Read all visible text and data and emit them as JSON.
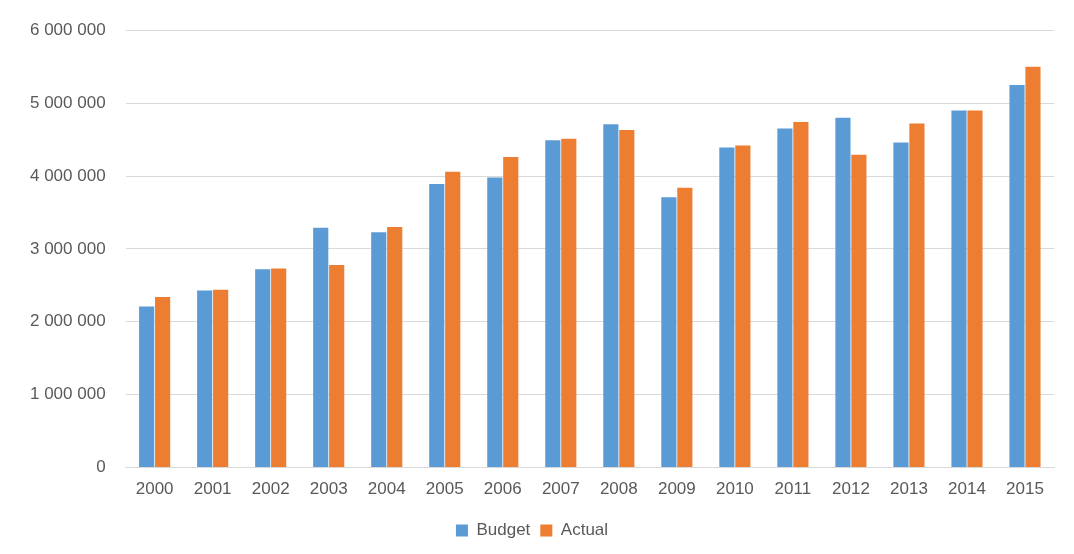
{
  "chart_data": {
    "type": "bar",
    "categories": [
      "2000",
      "2001",
      "2002",
      "2003",
      "2004",
      "2005",
      "2006",
      "2007",
      "2008",
      "2009",
      "2010",
      "2011",
      "2012",
      "2013",
      "2014",
      "2015"
    ],
    "series": [
      {
        "name": "Budget",
        "color": "#5b9bd5",
        "values": [
          2210000,
          2430000,
          2720000,
          3290000,
          3230000,
          3890000,
          3980000,
          4490000,
          4710000,
          3710000,
          4390000,
          4650000,
          4800000,
          4460000,
          4900000,
          5250000
        ]
      },
      {
        "name": "Actual",
        "color": "#ed7d31",
        "values": [
          2340000,
          2440000,
          2730000,
          2780000,
          3300000,
          4060000,
          4260000,
          4510000,
          4630000,
          3840000,
          4420000,
          4740000,
          4290000,
          4720000,
          4900000,
          5500000
        ]
      }
    ],
    "ylim": [
      0,
      6000000
    ],
    "yticks": [
      {
        "value": 0,
        "label": "0"
      },
      {
        "value": 1000000,
        "label": "1 000 000"
      },
      {
        "value": 2000000,
        "label": "2 000 000"
      },
      {
        "value": 3000000,
        "label": "3 000 000"
      },
      {
        "value": 4000000,
        "label": "4 000 000"
      },
      {
        "value": 5000000,
        "label": "5 000 000"
      },
      {
        "value": 6000000,
        "label": "6 000 000"
      }
    ],
    "grid": "y",
    "legend": "bottom"
  }
}
